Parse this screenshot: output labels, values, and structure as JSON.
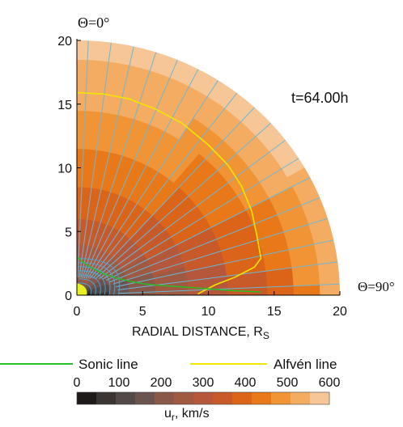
{
  "chart_data": {
    "type": "heatmap",
    "description_variable": "radial solar wind speed",
    "time_label": "t=64.00h",
    "theta_top_label": "Θ=0°",
    "theta_right_label": "Θ=90°",
    "xlabel": "RADIAL DISTANCE, R",
    "xlabel_sub": "S",
    "xlim": [
      0,
      20
    ],
    "ylim": [
      0,
      20
    ],
    "x_ticks": [
      "0",
      "5",
      "10",
      "15",
      "20"
    ],
    "y_ticks": [
      "0",
      "5",
      "10",
      "15",
      "20"
    ],
    "legend": [
      {
        "label": "Sonic line",
        "color": "#22c022"
      },
      {
        "label": "Alfvén line",
        "color": "#f2e600"
      }
    ],
    "colorbar": {
      "label_main": "u",
      "label_sub": "r",
      "label_units": ", km/s",
      "ticks": [
        "0",
        "100",
        "200",
        "300",
        "400",
        "500",
        "600"
      ],
      "range": [
        0,
        600
      ],
      "colors": [
        "#1e1a1a",
        "#3a3433",
        "#524a48",
        "#6b5450",
        "#8a5848",
        "#a05a42",
        "#b5573a",
        "#c85a2a",
        "#dc6418",
        "#e87818",
        "#f09436",
        "#f4ac62",
        "#f7c696"
      ]
    },
    "speed_bands_top": [
      {
        "r0": 0.0,
        "r1": 1.2,
        "value": 200
      },
      {
        "r0": 1.2,
        "r1": 2.5,
        "value": 240
      },
      {
        "r0": 2.5,
        "r1": 4.0,
        "value": 290
      },
      {
        "r0": 4.0,
        "r1": 6.0,
        "value": 335
      },
      {
        "r0": 6.0,
        "r1": 8.5,
        "value": 380
      },
      {
        "r0": 8.5,
        "r1": 11.5,
        "value": 425
      },
      {
        "r0": 11.5,
        "r1": 14.5,
        "value": 470
      },
      {
        "r0": 14.5,
        "r1": 16.5,
        "value": 510
      },
      {
        "r0": 16.5,
        "r1": 18.5,
        "value": 550
      },
      {
        "r0": 18.5,
        "r1": 20.0,
        "value": 590
      }
    ],
    "alfven_line": {
      "x": [
        0,
        2,
        4,
        6,
        8,
        10,
        11.5,
        12.5,
        13.3,
        13.7,
        14.0,
        13.5,
        12.0,
        10.5,
        9.2
      ],
      "y": [
        15.9,
        15.8,
        15.4,
        14.6,
        13.5,
        11.8,
        10.2,
        8.6,
        6.6,
        4.6,
        2.9,
        2.2,
        1.4,
        0.8,
        0.1
      ]
    },
    "sonic_line": {
      "x": [
        0.0,
        0.5,
        1.2,
        2.0,
        3.0,
        4.0,
        5.0,
        6.5,
        8.0,
        10.0,
        12.0,
        14.0
      ],
      "y": [
        3.0,
        2.6,
        2.1,
        1.7,
        1.35,
        1.1,
        0.9,
        0.75,
        0.65,
        0.5,
        0.35,
        0.25
      ]
    }
  }
}
